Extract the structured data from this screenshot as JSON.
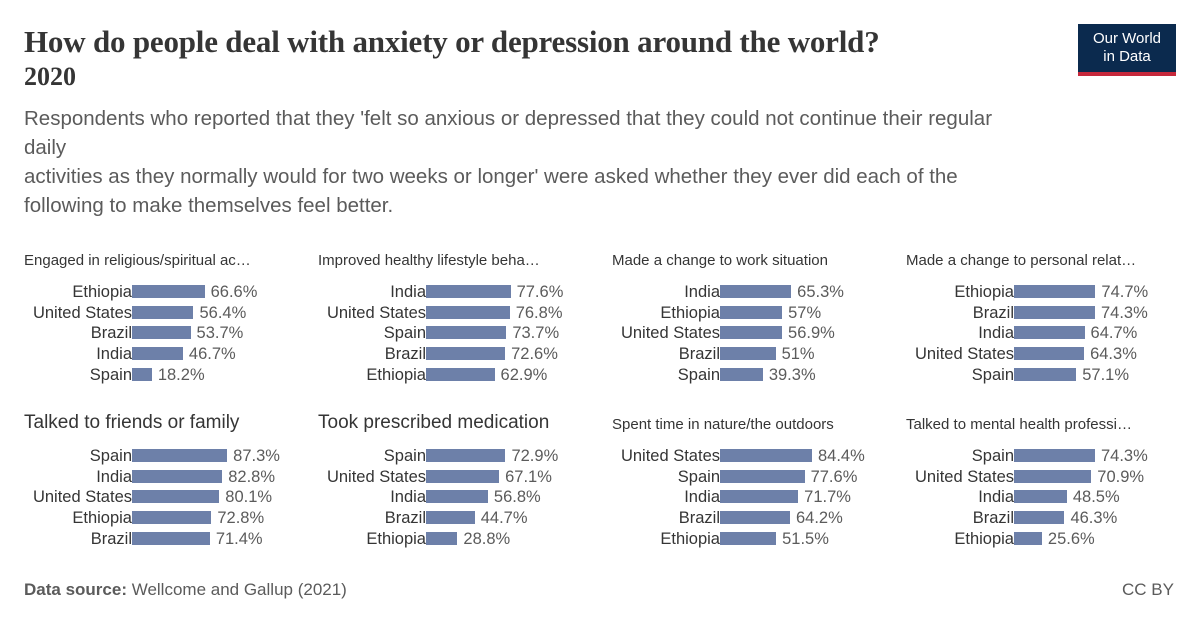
{
  "title": "How do people deal with anxiety or depression around the world?",
  "year": "2020",
  "subtitle_lines": [
    "Respondents who reported that they 'felt so anxious or depressed that they could not continue their regular",
    "daily",
    "activities as they normally would for two weeks or longer' were asked whether they ever did each of the",
    "following to make themselves feel better."
  ],
  "logo": {
    "line1": "Our World",
    "line2": "in Data"
  },
  "footer": {
    "source_label": "Data source:",
    "source_text": " Wellcome and Gallup (2021)",
    "license": "CC BY"
  },
  "colors": {
    "bar": "#6d80a9",
    "logo_bg": "#0b2a4e",
    "logo_accent": "#c6283b"
  },
  "chart_data": [
    {
      "type": "bar",
      "title": "Engaged in religious/spiritual ac…",
      "categories": [
        "Ethiopia",
        "United States",
        "Brazil",
        "India",
        "Spain"
      ],
      "values": [
        66.6,
        56.4,
        53.7,
        46.7,
        18.2
      ],
      "labels": [
        "66.6%",
        "56.4%",
        "53.7%",
        "46.7%",
        "18.2%"
      ]
    },
    {
      "type": "bar",
      "title": "Improved healthy lifestyle beha…",
      "categories": [
        "India",
        "United States",
        "Spain",
        "Brazil",
        "Ethiopia"
      ],
      "values": [
        77.6,
        76.8,
        73.7,
        72.6,
        62.9
      ],
      "labels": [
        "77.6%",
        "76.8%",
        "73.7%",
        "72.6%",
        "62.9%"
      ]
    },
    {
      "type": "bar",
      "title": "Made a change to work situation",
      "categories": [
        "India",
        "Ethiopia",
        "United States",
        "Brazil",
        "Spain"
      ],
      "values": [
        65.3,
        57,
        56.9,
        51,
        39.3
      ],
      "labels": [
        "65.3%",
        "57%",
        "56.9%",
        "51%",
        "39.3%"
      ]
    },
    {
      "type": "bar",
      "title": "Made a change to personal relat…",
      "categories": [
        "Ethiopia",
        "Brazil",
        "India",
        "United States",
        "Spain"
      ],
      "values": [
        74.7,
        74.3,
        64.7,
        64.3,
        57.1
      ],
      "labels": [
        "74.7%",
        "74.3%",
        "64.7%",
        "64.3%",
        "57.1%"
      ]
    },
    {
      "type": "bar",
      "title": "Talked to friends or family",
      "categories": [
        "Spain",
        "India",
        "United States",
        "Ethiopia",
        "Brazil"
      ],
      "values": [
        87.3,
        82.8,
        80.1,
        72.8,
        71.4
      ],
      "labels": [
        "87.3%",
        "82.8%",
        "80.1%",
        "72.8%",
        "71.4%"
      ]
    },
    {
      "type": "bar",
      "title": "Took prescribed medication",
      "categories": [
        "Spain",
        "United States",
        "India",
        "Brazil",
        "Ethiopia"
      ],
      "values": [
        72.9,
        67.1,
        56.8,
        44.7,
        28.8
      ],
      "labels": [
        "72.9%",
        "67.1%",
        "56.8%",
        "44.7%",
        "28.8%"
      ]
    },
    {
      "type": "bar",
      "title": "Spent time in nature/the outdoors",
      "categories": [
        "United States",
        "Spain",
        "India",
        "Brazil",
        "Ethiopia"
      ],
      "values": [
        84.4,
        77.6,
        71.7,
        64.2,
        51.5
      ],
      "labels": [
        "84.4%",
        "77.6%",
        "71.7%",
        "64.2%",
        "51.5%"
      ]
    },
    {
      "type": "bar",
      "title": "Talked to mental health professi…",
      "categories": [
        "Spain",
        "United States",
        "India",
        "Brazil",
        "Ethiopia"
      ],
      "values": [
        74.3,
        70.9,
        48.5,
        46.3,
        25.6
      ],
      "labels": [
        "74.3%",
        "70.9%",
        "48.5%",
        "46.3%",
        "25.6%"
      ]
    }
  ]
}
